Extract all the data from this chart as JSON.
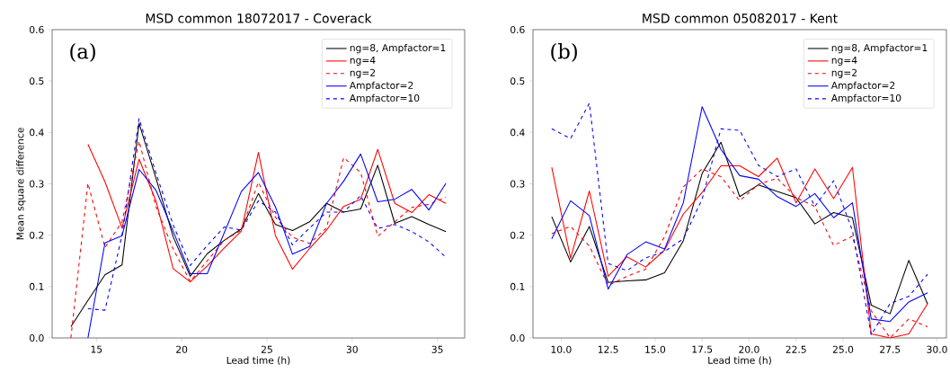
{
  "chart_data": [
    {
      "type": "line",
      "title": "MSD common 18072017 - Coverack",
      "xlabel": "Lead time (h)",
      "ylabel": "Mean square difference",
      "annotations": [
        "(a)"
      ],
      "legend": "top right",
      "x": [
        13.5,
        14.5,
        15.5,
        16.5,
        17.5,
        18.5,
        19.5,
        20.5,
        21.5,
        22.5,
        23.5,
        24.5,
        25.5,
        26.5,
        27.5,
        28.5,
        29.5,
        30.5,
        31.5,
        32.5,
        33.5,
        34.5,
        35.5
      ],
      "xlim": [
        12.4,
        36.6
      ],
      "ylim": [
        0,
        0.6
      ],
      "xticks": [
        15,
        20,
        25,
        30,
        35
      ],
      "yticks": [
        {
          "value": 0,
          "label": "0.0"
        },
        {
          "value": 0.1,
          "label": "0.1"
        },
        {
          "value": 0.2,
          "label": "0.2"
        },
        {
          "value": 0.3,
          "label": "0.3"
        },
        {
          "value": 0.4,
          "label": "0.4"
        },
        {
          "value": 0.5,
          "label": "0.5"
        },
        {
          "value": 0.6,
          "label": "0.6"
        }
      ],
      "series": [
        {
          "name": "ng=8, Ampfactor=1",
          "color": "#000000",
          "line_style": "solid",
          "values": [
            0.022,
            0.073,
            0.123,
            0.142,
            0.418,
            0.31,
            0.197,
            0.12,
            0.164,
            0.19,
            0.212,
            0.281,
            0.221,
            0.209,
            0.226,
            0.262,
            0.245,
            0.251,
            0.336,
            0.223,
            0.236,
            0.221,
            0.207
          ]
        },
        {
          "name": "ng=4",
          "color": "#ff0000",
          "line_style": "solid",
          "values": [
            null,
            0.377,
            0.304,
            0.214,
            0.348,
            0.266,
            0.135,
            0.109,
            0.14,
            0.175,
            0.208,
            0.361,
            0.199,
            0.134,
            0.174,
            0.21,
            0.256,
            0.27,
            0.367,
            0.262,
            0.244,
            0.279,
            0.262
          ]
        },
        {
          "name": "ng=2",
          "color": "#ff0000",
          "line_style": "dashed",
          "values": [
            0.0,
            0.301,
            0.176,
            0.226,
            0.383,
            0.255,
            0.173,
            0.11,
            0.15,
            0.19,
            0.21,
            0.303,
            0.235,
            0.196,
            0.184,
            0.214,
            0.351,
            0.322,
            0.198,
            0.226,
            0.254,
            0.26,
            0.274
          ]
        },
        {
          "name": "Ampfactor=2",
          "color": "#0000ff",
          "line_style": "solid",
          "values": [
            null,
            0.0,
            0.185,
            0.199,
            0.328,
            0.287,
            0.208,
            0.125,
            0.125,
            0.205,
            0.285,
            0.322,
            0.255,
            0.163,
            0.178,
            0.262,
            0.305,
            0.358,
            0.265,
            0.27,
            0.289,
            0.249,
            0.301
          ]
        },
        {
          "name": "Ampfactor=10",
          "color": "#0000ff",
          "line_style": "dashed",
          "values": [
            null,
            0.057,
            0.054,
            0.2,
            0.427,
            0.32,
            0.22,
            0.141,
            0.18,
            0.216,
            0.21,
            0.267,
            0.245,
            0.181,
            0.214,
            0.245,
            0.245,
            0.277,
            0.213,
            0.221,
            0.207,
            0.187,
            0.157
          ]
        }
      ]
    },
    {
      "type": "line",
      "title": "MSD common 05082017 - Kent",
      "xlabel": "Lead time (h)",
      "annotations": [
        "(b)"
      ],
      "legend": "top right",
      "x": [
        9.5,
        10.5,
        11.5,
        12.5,
        13.5,
        14.5,
        15.5,
        16.5,
        17.5,
        18.5,
        19.5,
        20.5,
        21.5,
        22.5,
        23.5,
        24.5,
        25.5,
        26.5,
        27.5,
        28.5,
        29.5
      ],
      "xlim": [
        8.5,
        30.5
      ],
      "ylim": [
        0,
        0.6
      ],
      "xticks": [
        {
          "value": 10,
          "label": "10.0"
        },
        {
          "value": 12.5,
          "label": "12.5"
        },
        {
          "value": 15,
          "label": "15.0"
        },
        {
          "value": 17.5,
          "label": "17.5"
        },
        {
          "value": 20,
          "label": "20.0"
        },
        {
          "value": 22.5,
          "label": "22.5"
        },
        {
          "value": 25,
          "label": "25.0"
        },
        {
          "value": 27.5,
          "label": "27.5"
        },
        {
          "value": 30,
          "label": "30.0"
        }
      ],
      "yticks": [
        {
          "value": 0,
          "label": "0.0"
        },
        {
          "value": 0.1,
          "label": "0.1"
        },
        {
          "value": 0.2,
          "label": "0.2"
        },
        {
          "value": 0.3,
          "label": "0.3"
        },
        {
          "value": 0.4,
          "label": "0.4"
        },
        {
          "value": 0.5,
          "label": "0.5"
        },
        {
          "value": 0.6,
          "label": "0.6"
        }
      ],
      "series": [
        {
          "name": "ng=8, Ampfactor=1",
          "color": "#000000",
          "line_style": "solid",
          "values": [
            0.236,
            0.148,
            0.217,
            0.108,
            0.111,
            0.113,
            0.127,
            0.189,
            0.32,
            0.381,
            0.275,
            0.298,
            0.285,
            0.273,
            0.222,
            0.244,
            0.234,
            0.064,
            0.047,
            0.151,
            0.066
          ]
        },
        {
          "name": "ng=4",
          "color": "#ff0000",
          "line_style": "solid",
          "values": [
            0.332,
            0.155,
            0.286,
            0.12,
            0.158,
            0.138,
            0.171,
            0.241,
            0.283,
            0.335,
            0.335,
            0.314,
            0.35,
            0.263,
            0.329,
            0.271,
            0.332,
            0.008,
            0.0,
            0.008,
            0.067
          ]
        },
        {
          "name": "ng=2",
          "color": "#ff0000",
          "line_style": "dashed",
          "values": [
            0.203,
            0.217,
            0.179,
            0.102,
            0.12,
            0.134,
            0.197,
            0.294,
            0.329,
            0.314,
            0.267,
            0.299,
            0.311,
            0.273,
            0.256,
            0.18,
            0.198,
            0.053,
            0.0,
            0.037,
            0.022
          ]
        },
        {
          "name": "Ampfactor=2",
          "color": "#0000ff",
          "line_style": "solid",
          "values": [
            0.193,
            0.267,
            0.238,
            0.095,
            0.162,
            0.187,
            0.173,
            0.263,
            0.45,
            0.367,
            0.316,
            0.309,
            0.275,
            0.256,
            0.281,
            0.234,
            0.263,
            0.037,
            0.032,
            0.07,
            0.088
          ]
        },
        {
          "name": "Ampfactor=10",
          "color": "#0000ff",
          "line_style": "dashed",
          "values": [
            0.407,
            0.388,
            0.457,
            0.145,
            0.131,
            0.156,
            0.168,
            0.193,
            0.27,
            0.407,
            0.404,
            0.336,
            0.314,
            0.329,
            0.256,
            0.306,
            0.209,
            0.006,
            0.067,
            0.081,
            0.124
          ]
        }
      ]
    }
  ]
}
